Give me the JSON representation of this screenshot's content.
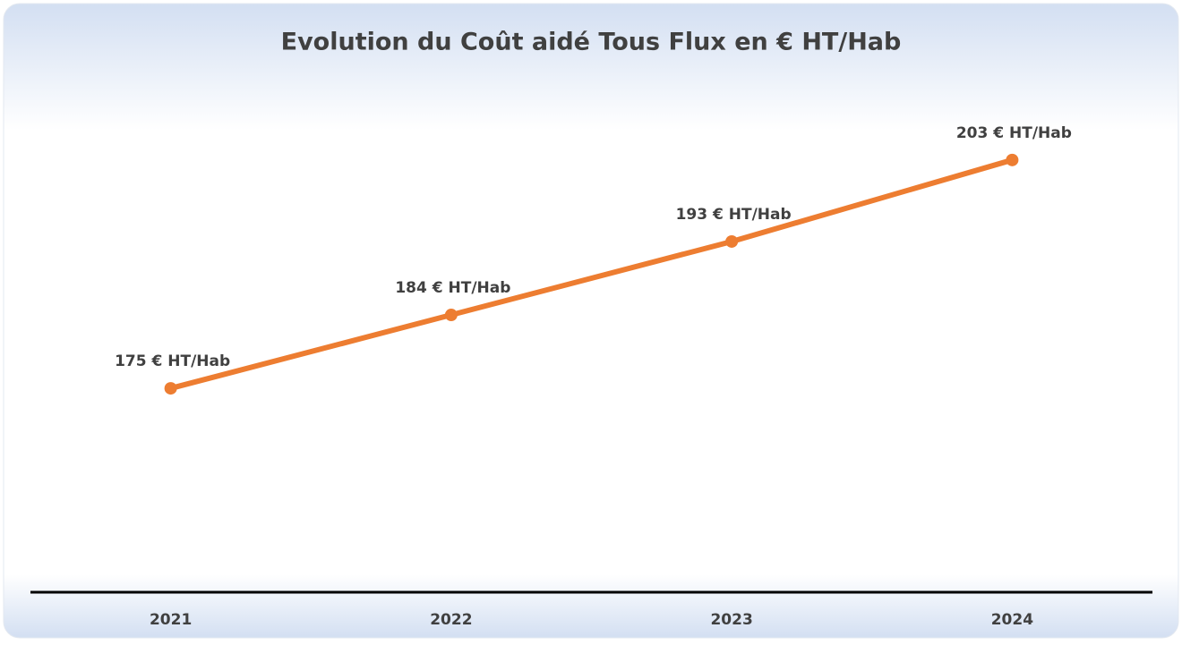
{
  "chart_data": {
    "type": "line",
    "title": "Evolution du Coût aidé Tous Flux en € HT/Hab",
    "categories": [
      "2021",
      "2022",
      "2023",
      "2024"
    ],
    "series": [
      {
        "name": "Coût aidé",
        "color": "#ed7d31",
        "values": [
          175,
          184,
          193,
          203
        ],
        "value_labels": [
          "175 € HT/Hab",
          "184 € HT/Hab",
          "193 € HT/Hab",
          "203 € HT/Hab"
        ]
      }
    ],
    "ylim": [
      150,
      210
    ]
  }
}
